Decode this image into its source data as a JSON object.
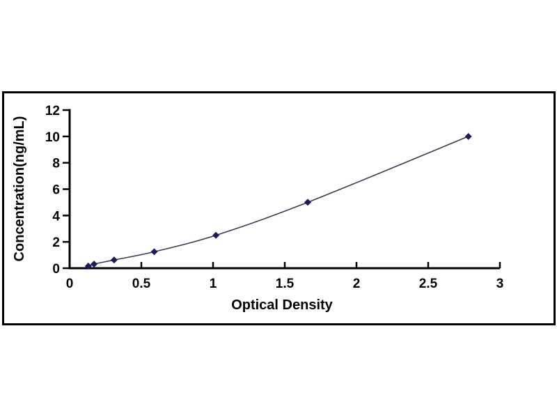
{
  "figure": {
    "background_color": "#ffffff",
    "frame_border_color": "#000000",
    "axis_color": "#000000",
    "curve_color": "#3a3a55",
    "marker_color": "#1b1b5e",
    "tick_label_color": "#000000"
  },
  "chart_data": {
    "type": "scatter",
    "title": "",
    "xlabel": "Optical Density",
    "ylabel": "Concentration(ng/mL)",
    "x": [
      0.13,
      0.17,
      0.31,
      0.59,
      1.02,
      1.66,
      2.78
    ],
    "y": [
      0.156,
      0.3125,
      0.625,
      1.25,
      2.5,
      5,
      10
    ],
    "x_ticks": [
      0,
      0.5,
      1,
      1.5,
      2,
      2.5,
      3
    ],
    "x_tick_labels": [
      "0",
      "0.5",
      "1",
      "1.5",
      "2",
      "2.5",
      "3"
    ],
    "y_ticks": [
      0,
      2,
      4,
      6,
      8,
      10,
      12
    ],
    "y_tick_labels": [
      "0",
      "2",
      "4",
      "6",
      "8",
      "10",
      "12"
    ],
    "xlim": [
      0,
      3
    ],
    "ylim": [
      0,
      12
    ],
    "marker": "diamond",
    "line_style": "smooth",
    "grid": false,
    "legend_position": "none"
  }
}
